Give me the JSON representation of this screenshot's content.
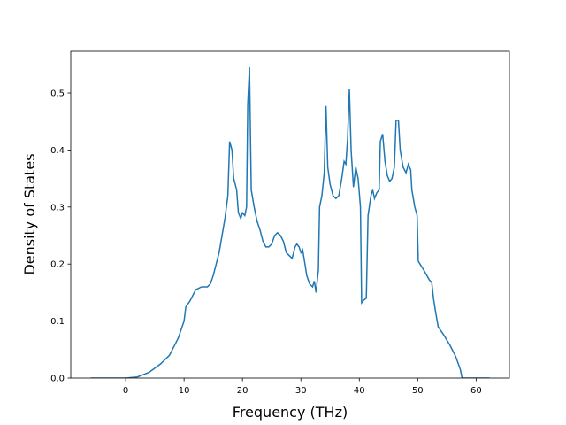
{
  "chart_data": {
    "type": "line",
    "xlabel": "Frequency (THz)",
    "ylabel": "Density of States",
    "color": "#1f77b4",
    "x": [
      -6,
      0,
      2,
      4,
      6,
      7.5,
      8,
      9,
      10,
      10.3,
      11,
      12,
      13,
      14,
      14.5,
      15,
      16,
      17,
      17.5,
      17.8,
      18.2,
      18.5,
      19,
      19.3,
      19.7,
      20,
      20.4,
      20.7,
      20.9,
      21.2,
      21.5,
      22,
      22.5,
      23,
      23.5,
      24,
      24.5,
      25,
      25.5,
      26,
      26.5,
      27,
      27.5,
      28,
      28.5,
      29,
      29.3,
      29.7,
      30,
      30.3,
      30.7,
      31,
      31.5,
      32,
      32.3,
      32.6,
      33,
      33.2,
      33.6,
      34,
      34.3,
      34.6,
      35,
      35.5,
      36,
      36.5,
      37,
      37.4,
      37.7,
      38,
      38.3,
      38.6,
      39,
      39.4,
      39.8,
      40.2,
      40.4,
      40.8,
      41.2,
      41.5,
      42,
      42.3,
      42.6,
      43,
      43.4,
      43.6,
      44,
      44.4,
      44.8,
      45.2,
      45.6,
      46,
      46.3,
      46.7,
      47,
      47.5,
      48,
      48.4,
      48.8,
      49,
      49.5,
      49.9,
      50.1,
      51,
      52,
      52.4,
      52.7,
      53,
      53.5,
      54.5,
      55.5,
      56.5,
      57.3,
      57.6,
      62.3
    ],
    "values": [
      0,
      0,
      0.002,
      0.01,
      0.025,
      0.04,
      0.05,
      0.07,
      0.1,
      0.125,
      0.135,
      0.155,
      0.16,
      0.16,
      0.165,
      0.18,
      0.22,
      0.28,
      0.32,
      0.415,
      0.4,
      0.35,
      0.33,
      0.29,
      0.28,
      0.29,
      0.285,
      0.3,
      0.48,
      0.545,
      0.33,
      0.3,
      0.275,
      0.26,
      0.24,
      0.23,
      0.23,
      0.235,
      0.25,
      0.255,
      0.25,
      0.24,
      0.22,
      0.215,
      0.21,
      0.23,
      0.235,
      0.23,
      0.22,
      0.225,
      0.2,
      0.18,
      0.165,
      0.16,
      0.17,
      0.15,
      0.19,
      0.3,
      0.32,
      0.36,
      0.477,
      0.37,
      0.34,
      0.32,
      0.315,
      0.32,
      0.35,
      0.38,
      0.375,
      0.42,
      0.507,
      0.4,
      0.335,
      0.37,
      0.35,
      0.3,
      0.132,
      0.137,
      0.14,
      0.285,
      0.32,
      0.33,
      0.315,
      0.325,
      0.33,
      0.415,
      0.428,
      0.38,
      0.355,
      0.345,
      0.35,
      0.37,
      0.452,
      0.452,
      0.4,
      0.37,
      0.36,
      0.375,
      0.365,
      0.33,
      0.3,
      0.285,
      0.205,
      0.19,
      0.172,
      0.168,
      0.14,
      0.12,
      0.09,
      0.075,
      0.058,
      0.038,
      0.015,
      0,
      0
    ],
    "xlim": [
      -9.4,
      65.7
    ],
    "ylim": [
      0,
      0.573
    ],
    "xticks": [
      0,
      10,
      20,
      30,
      40,
      50,
      60
    ],
    "yticks": [
      {
        "value": 0,
        "label": "0.0"
      },
      0.1,
      0.2,
      0.3,
      0.4,
      0.5
    ]
  }
}
